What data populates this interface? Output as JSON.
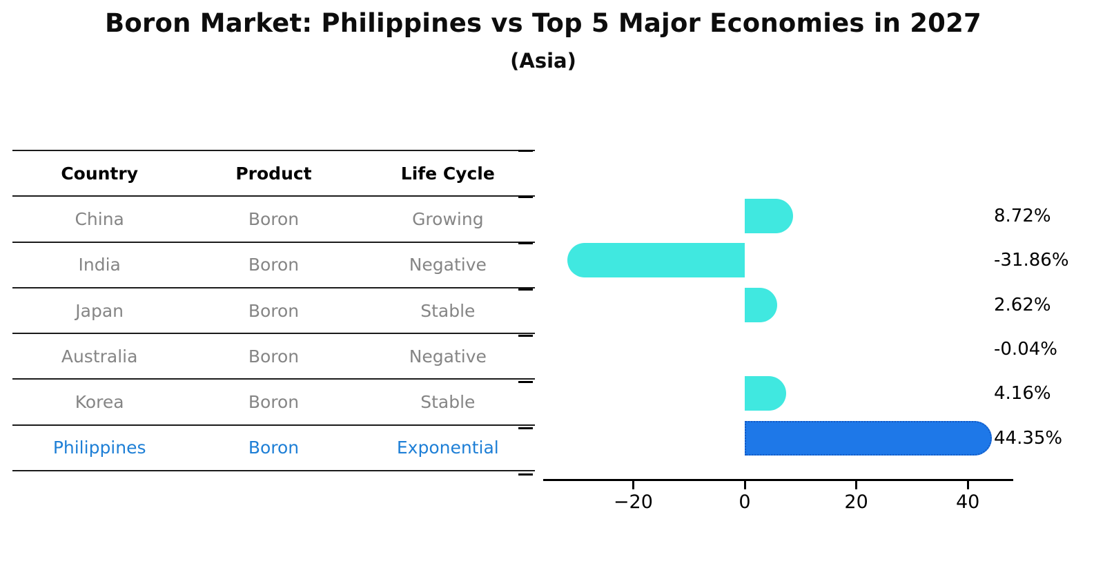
{
  "title": "Boron Market: Philippines vs Top 5 Major Economies in 2027",
  "subtitle": "(Asia)",
  "table": {
    "headers": [
      "Country",
      "Product",
      "Life Cycle"
    ],
    "rows": [
      {
        "country": "China",
        "product": "Boron",
        "life_cycle": "Growing",
        "highlight": false
      },
      {
        "country": "India",
        "product": "Boron",
        "life_cycle": "Negative",
        "highlight": false
      },
      {
        "country": "Japan",
        "product": "Boron",
        "life_cycle": "Stable",
        "highlight": false
      },
      {
        "country": "Australia",
        "product": "Boron",
        "life_cycle": "Negative",
        "highlight": false
      },
      {
        "country": "Korea",
        "product": "Boron",
        "life_cycle": "Stable",
        "highlight": false
      },
      {
        "country": "Philippines",
        "product": "Boron",
        "life_cycle": "Exponential",
        "highlight": true
      }
    ]
  },
  "chart_data": {
    "type": "bar",
    "orientation": "horizontal",
    "title": "Boron Market: Philippines vs Top 5 Major Economies in 2027",
    "subtitle": "(Asia)",
    "categories": [
      "China",
      "India",
      "Japan",
      "Australia",
      "Korea",
      "Philippines"
    ],
    "values": [
      8.72,
      -31.86,
      2.62,
      -0.04,
      4.16,
      44.35
    ],
    "value_labels": [
      "8.72%",
      "-31.86%",
      "2.62%",
      "-0.04%",
      "4.16%",
      "44.35%"
    ],
    "unit": "%",
    "x_ticks": [
      -20,
      0,
      20,
      40
    ],
    "x_tick_labels": [
      "−20",
      "0",
      "20",
      "40"
    ],
    "xlim": [
      -36,
      48
    ],
    "grid": false,
    "bar_color": "#40e8e0",
    "highlight_index": 5,
    "highlight_color": "#1e78e8",
    "highlight_border_color": "#1259c4"
  },
  "colors": {
    "background": "#ffffff",
    "text_black": "#000000",
    "text_gray": "#858585",
    "highlight_blue_text": "#1e7fd6",
    "bar_cyan": "#40e8e0",
    "bar_blue": "#1e78e8",
    "bar_blue_border": "#1259c4",
    "axis": "#000000"
  }
}
